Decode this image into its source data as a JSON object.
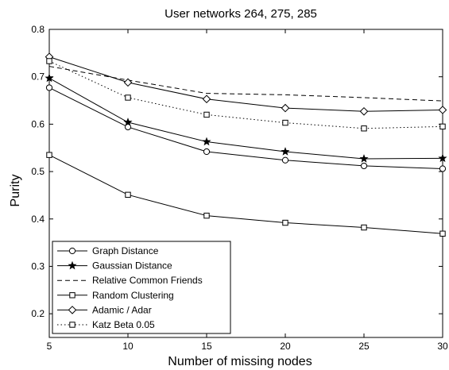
{
  "chart_data": {
    "type": "line",
    "title": "User networks 264, 275, 285",
    "xlabel": "Number of missing nodes",
    "ylabel": "Purity",
    "xlim": [
      5,
      30
    ],
    "ylim": [
      0.15,
      0.8
    ],
    "x_ticks": [
      5,
      10,
      15,
      20,
      25,
      30
    ],
    "y_ticks": [
      0.2,
      0.3,
      0.4,
      0.5,
      0.6,
      0.7,
      0.8
    ],
    "x_tick_labels": [
      "5",
      "10",
      "15",
      "20",
      "25",
      "30"
    ],
    "y_tick_labels": [
      "0.2",
      "0.3",
      "0.4",
      "0.5",
      "0.6",
      "0.7",
      "0.8"
    ],
    "grid": false,
    "legend_position": "bottom-left",
    "x": [
      5,
      10,
      15,
      20,
      25,
      30
    ],
    "series": [
      {
        "name": "Graph Distance",
        "marker": "circle",
        "line": "solid",
        "values": [
          0.677,
          0.594,
          0.542,
          0.524,
          0.512,
          0.506
        ]
      },
      {
        "name": "Gaussian Distance",
        "marker": "star",
        "line": "solid",
        "values": [
          0.697,
          0.604,
          0.563,
          0.542,
          0.527,
          0.528
        ]
      },
      {
        "name": "Relative Common Friends",
        "marker": "none",
        "line": "dashed",
        "values": [
          0.722,
          0.693,
          0.665,
          0.662,
          0.656,
          0.649
        ]
      },
      {
        "name": "Random Clustering",
        "marker": "square",
        "line": "solid",
        "values": [
          0.535,
          0.451,
          0.407,
          0.392,
          0.382,
          0.369
        ]
      },
      {
        "name": "Adamic / Adar",
        "marker": "diamond",
        "line": "solid",
        "values": [
          0.742,
          0.688,
          0.653,
          0.634,
          0.627,
          0.63
        ]
      },
      {
        "name": "Katz Beta 0.05",
        "marker": "square",
        "line": "dotted",
        "values": [
          0.733,
          0.656,
          0.62,
          0.603,
          0.591,
          0.595
        ]
      }
    ]
  }
}
